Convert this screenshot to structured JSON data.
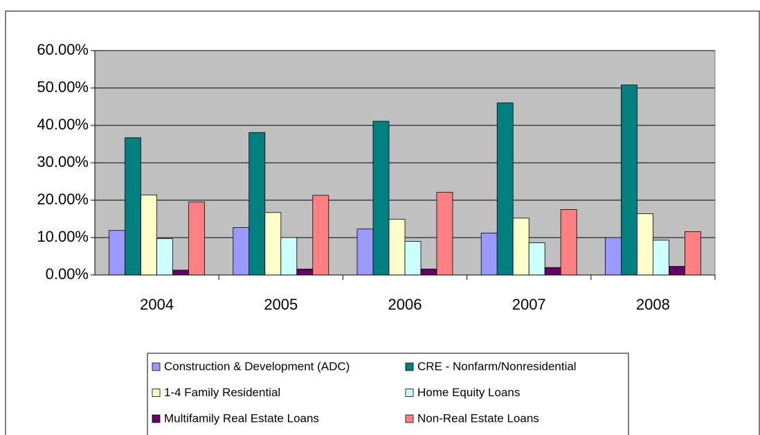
{
  "chart_data": {
    "type": "bar",
    "categories": [
      "2004",
      "2005",
      "2006",
      "2007",
      "2008"
    ],
    "series": [
      {
        "name": "Construction & Development (ADC)",
        "color": "#9999ff",
        "values": [
          11.9,
          12.7,
          12.3,
          11.2,
          10.0
        ]
      },
      {
        "name": "CRE - Nonfarm/Nonresidential",
        "color": "#008080",
        "values": [
          36.7,
          38.1,
          41.1,
          46.0,
          50.8
        ]
      },
      {
        "name": "1-4 Family Residential",
        "color": "#ffffcc",
        "values": [
          21.4,
          16.7,
          14.9,
          15.2,
          16.4
        ]
      },
      {
        "name": "Home Equity Loans",
        "color": "#ccffff",
        "values": [
          9.7,
          10.0,
          9.0,
          8.6,
          9.3
        ]
      },
      {
        "name": "Multifamily Real Estate Loans",
        "color": "#660066",
        "values": [
          1.3,
          1.6,
          1.6,
          2.0,
          2.3
        ]
      },
      {
        "name": "Non-Real Estate Loans",
        "color": "#ff8080",
        "values": [
          19.5,
          21.3,
          22.1,
          17.5,
          11.6
        ]
      }
    ],
    "ylim": [
      0,
      60
    ],
    "yticks": [
      {
        "value": 0,
        "label": "0.00%"
      },
      {
        "value": 10,
        "label": "10.00%"
      },
      {
        "value": 20,
        "label": "20.00%"
      },
      {
        "value": 30,
        "label": "30.00%"
      },
      {
        "value": 40,
        "label": "40.00%"
      },
      {
        "value": 50,
        "label": "50.00%"
      },
      {
        "value": 60,
        "label": "60.00%"
      }
    ],
    "grid": true,
    "legend": "bottom"
  }
}
